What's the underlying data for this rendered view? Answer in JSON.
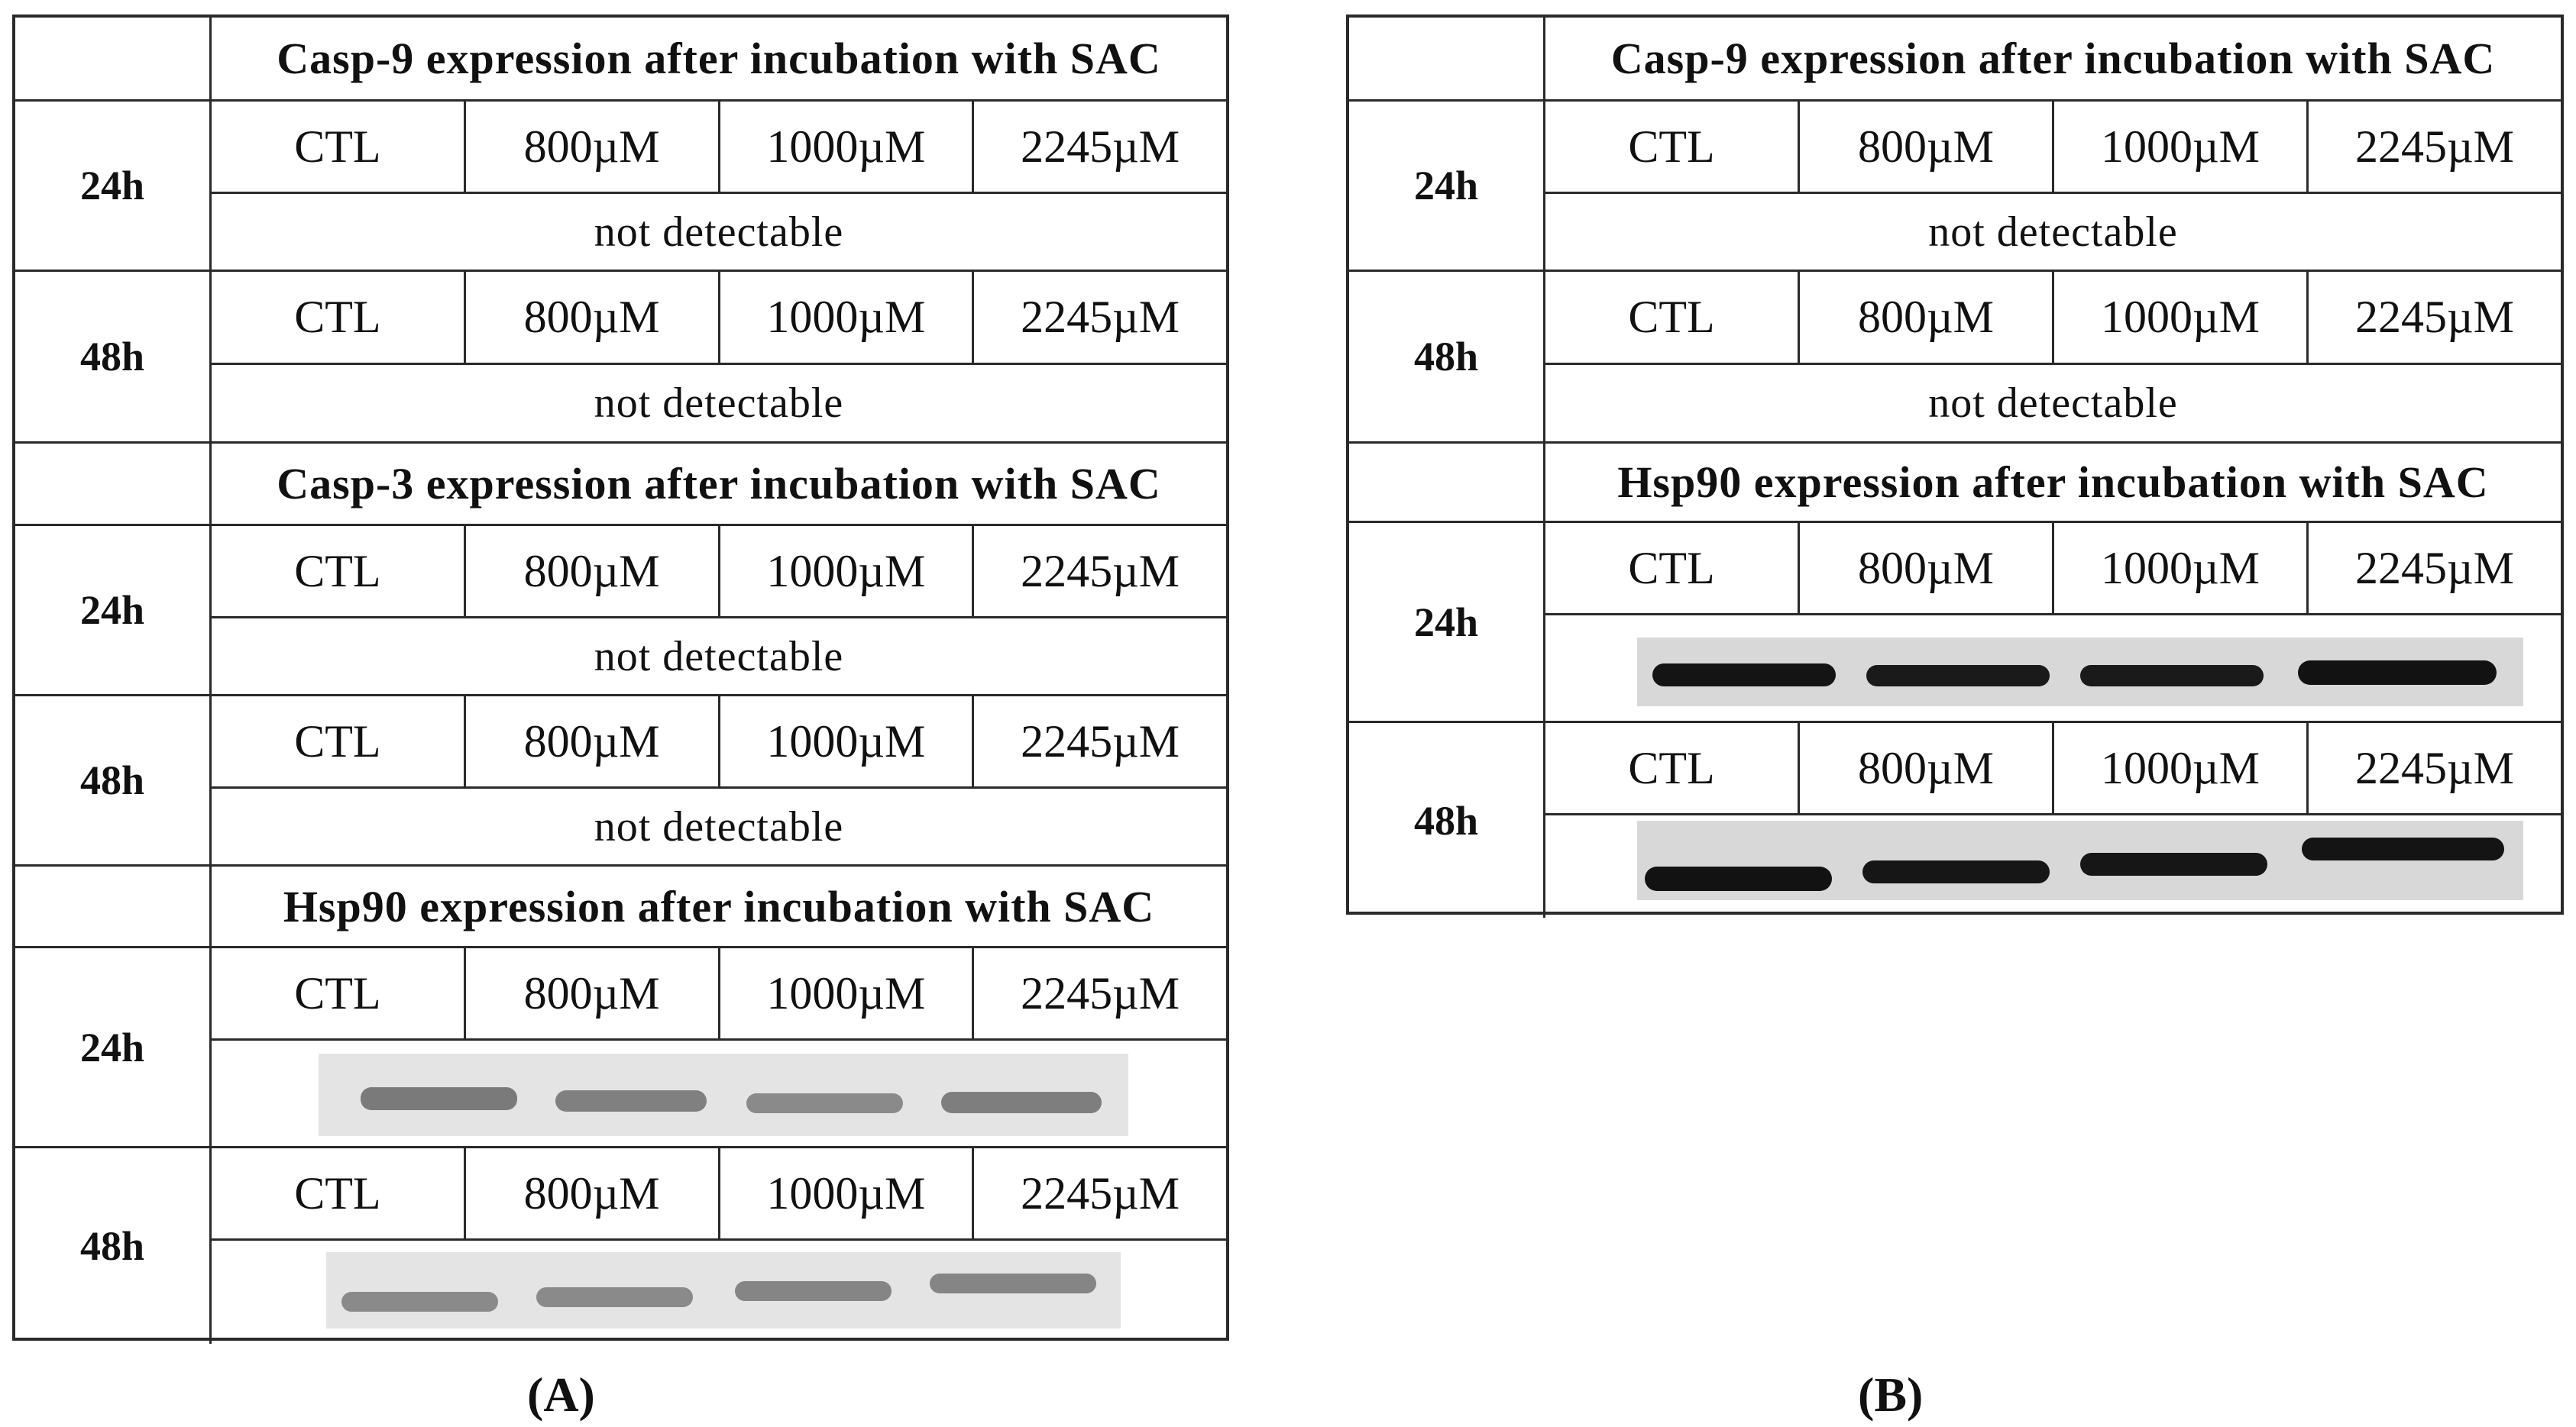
{
  "panel_a": {
    "label": "(A)",
    "sections": [
      {
        "title": "Casp-9 expression after incubation with SAC",
        "rows": [
          {
            "time": "24h",
            "concentrations": [
              "CTL",
              "800µM",
              "1000µM",
              "2245µM"
            ],
            "result": "not detectable",
            "blot": false
          },
          {
            "time": "48h",
            "concentrations": [
              "CTL",
              "800µM",
              "1000µM",
              "2245µM"
            ],
            "result": "not detectable",
            "blot": false
          }
        ]
      },
      {
        "title": "Casp-3 expression after incubation with SAC",
        "rows": [
          {
            "time": "24h",
            "concentrations": [
              "CTL",
              "800µM",
              "1000µM",
              "2245µM"
            ],
            "result": "not detectable",
            "blot": false
          },
          {
            "time": "48h",
            "concentrations": [
              "CTL",
              "800µM",
              "1000µM",
              "2245µM"
            ],
            "result": "not detectable",
            "blot": false
          }
        ]
      },
      {
        "title": "Hsp90 expression after incubation with SAC",
        "rows": [
          {
            "time": "24h",
            "concentrations": [
              "CTL",
              "800µM",
              "1000µM",
              "2245µM"
            ],
            "result": "",
            "blot": true
          },
          {
            "time": "48h",
            "concentrations": [
              "CTL",
              "800µM",
              "1000µM",
              "2245µM"
            ],
            "result": "",
            "blot": true
          }
        ]
      }
    ]
  },
  "panel_b": {
    "label": "(B)",
    "sections": [
      {
        "title": "Casp-9 expression after incubation with SAC",
        "rows": [
          {
            "time": "24h",
            "concentrations": [
              "CTL",
              "800µM",
              "1000µM",
              "2245µM"
            ],
            "result": "not detectable",
            "blot": false
          },
          {
            "time": "48h",
            "concentrations": [
              "CTL",
              "800µM",
              "1000µM",
              "2245µM"
            ],
            "result": "not detectable",
            "blot": false
          }
        ]
      },
      {
        "title": "Hsp90 expression after incubation with SAC",
        "rows": [
          {
            "time": "24h",
            "concentrations": [
              "CTL",
              "800µM",
              "1000µM",
              "2245µM"
            ],
            "result": "",
            "blot": true
          },
          {
            "time": "48h",
            "concentrations": [
              "CTL",
              "800µM",
              "1000µM",
              "2245µM"
            ],
            "result": "",
            "blot": true
          }
        ]
      }
    ]
  },
  "colors": {
    "line": "#2a2a2a",
    "blot_a_band": "#7a7a7a",
    "blot_a_background": "#e4e4e4",
    "blot_b_band": "#141414",
    "blot_b_background": "#d8d8d8"
  }
}
